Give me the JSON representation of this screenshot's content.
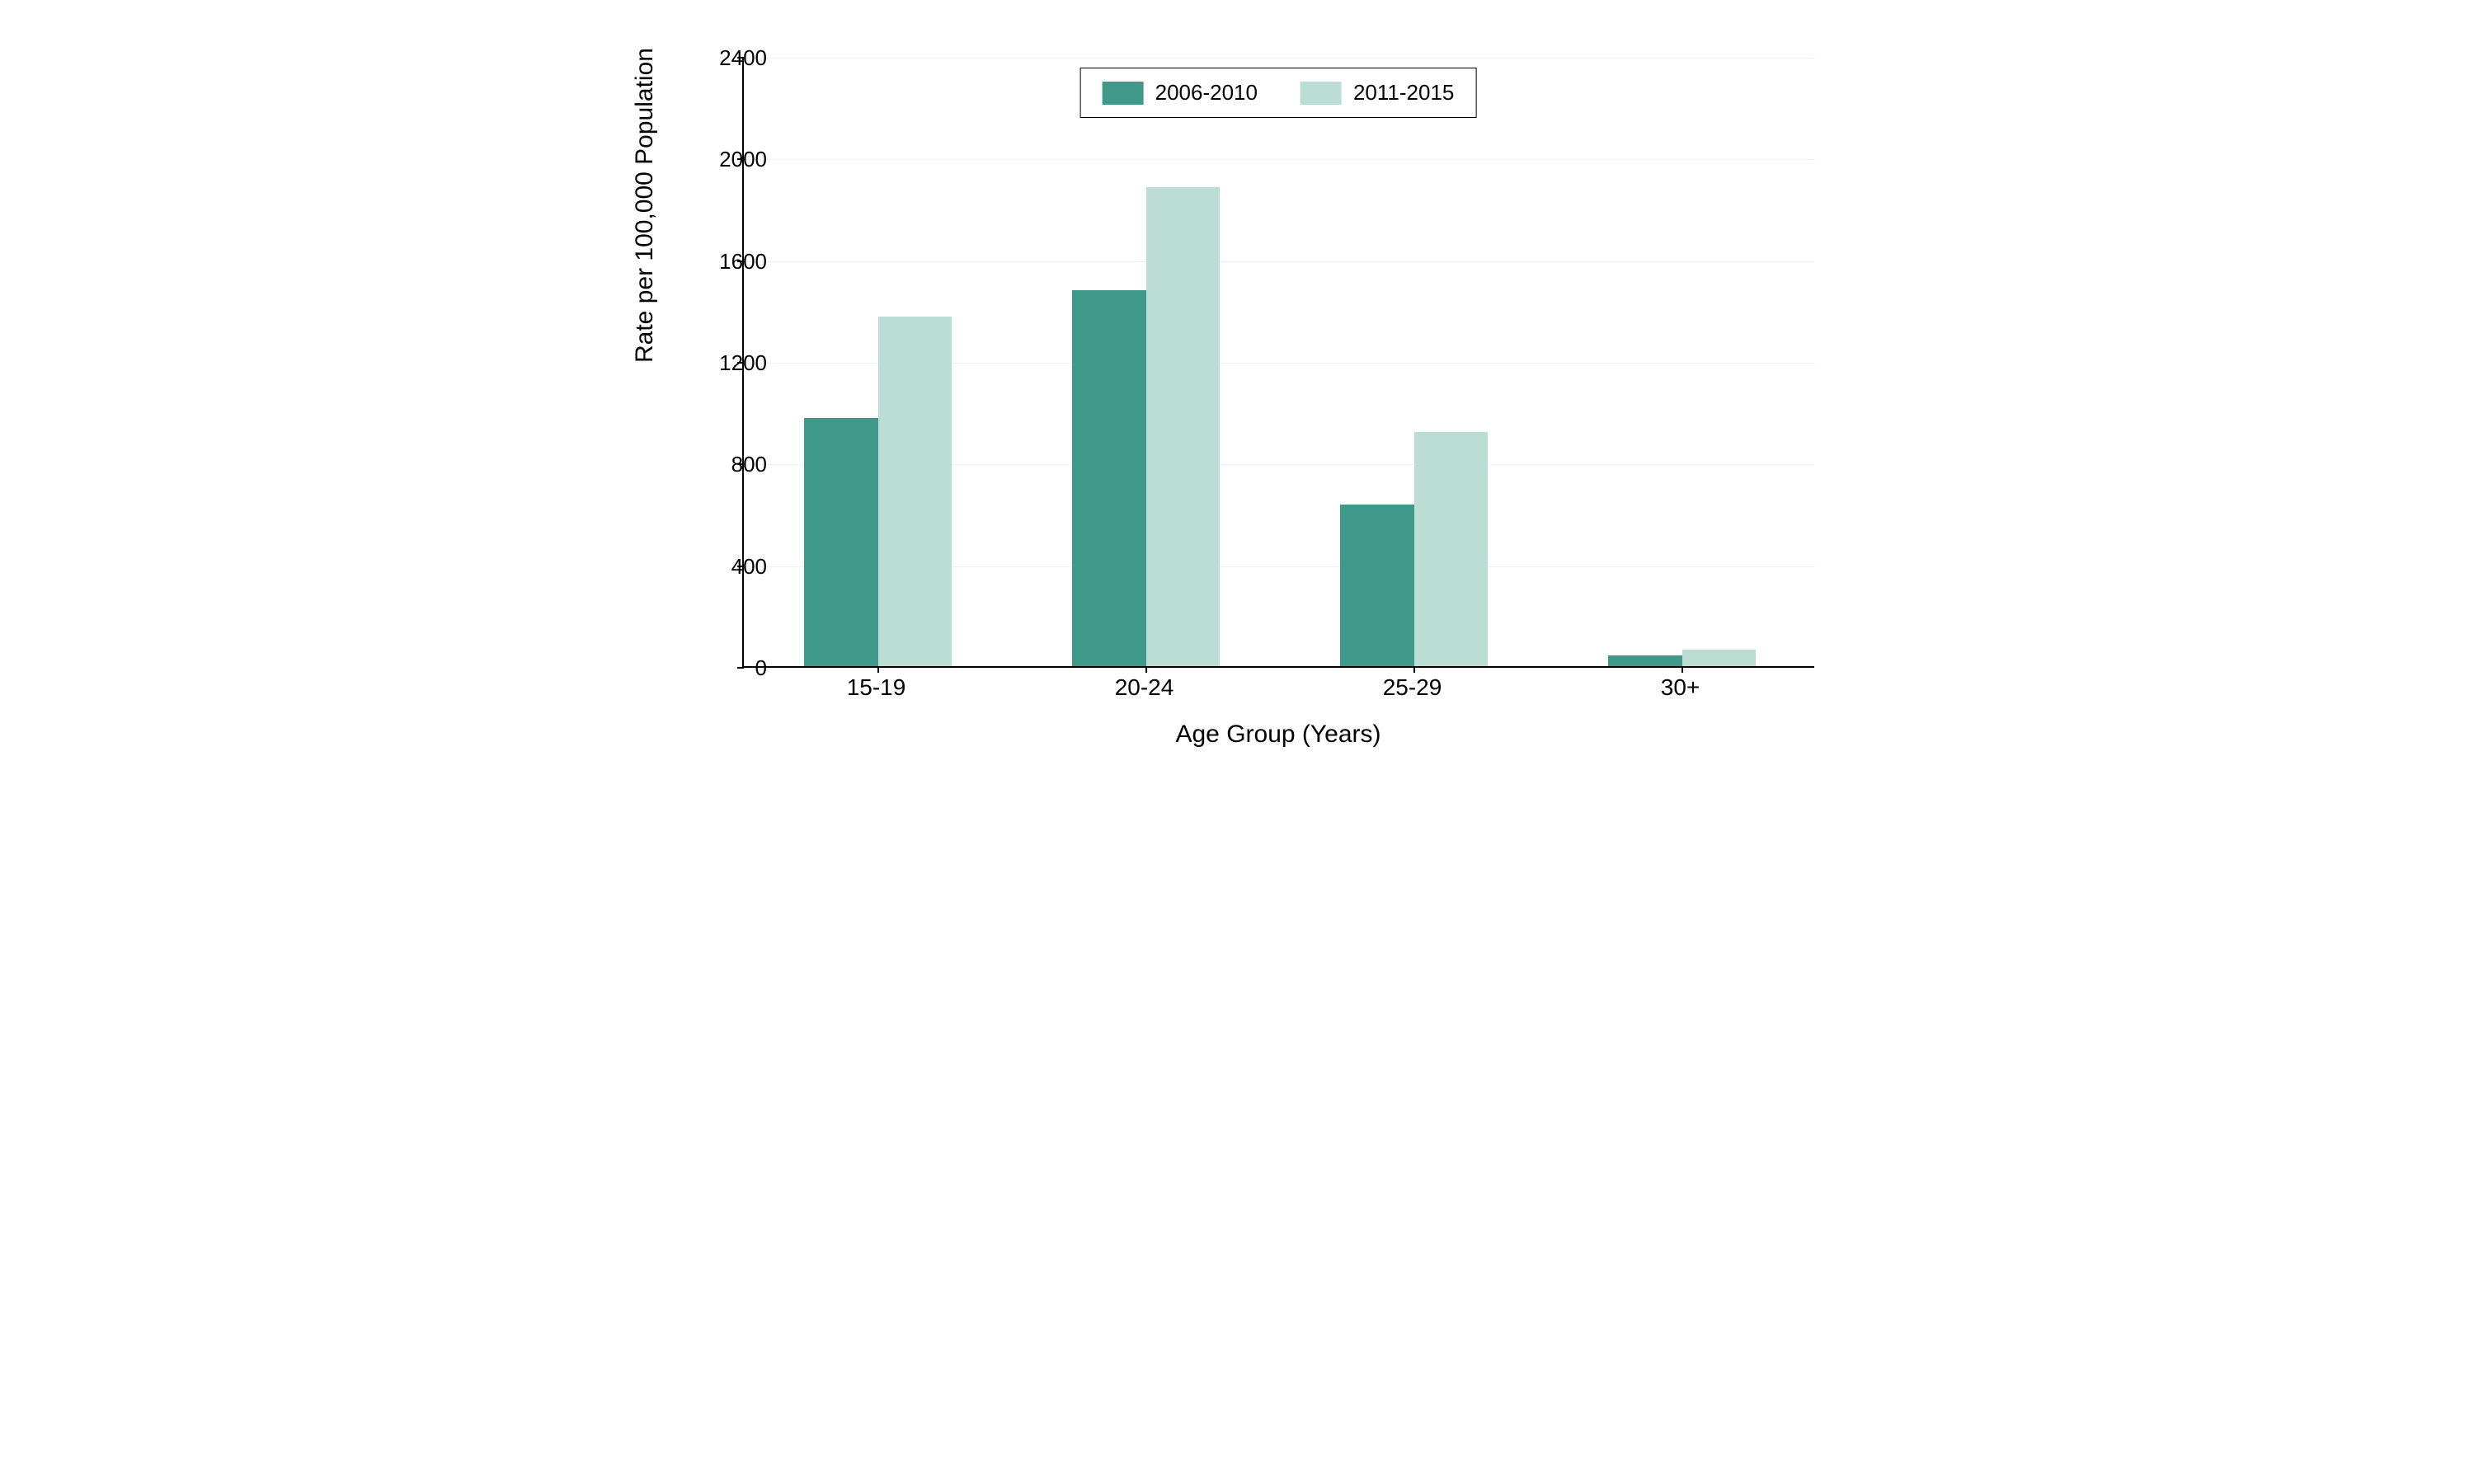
{
  "chart": {
    "type": "bar-grouped",
    "background_color": "#ffffff",
    "grid_color": "#eaf4f0",
    "axis_color": "#000000",
    "axis_line_width": 2,
    "ylabel": "Rate per 100,000 Population",
    "xlabel": "Age Group (Years)",
    "label_fontsize": 30,
    "tick_fontsize": 26,
    "ylim": [
      0,
      2400
    ],
    "ytick_step": 400,
    "yticks": [
      0,
      400,
      800,
      1200,
      1600,
      2000,
      2400
    ],
    "categories": [
      "15-19",
      "20-24",
      "25-29",
      "30+"
    ],
    "series": [
      {
        "name": "2006-2010",
        "color": "#3f998a",
        "values": [
          975,
          1480,
          635,
          42
        ]
      },
      {
        "name": "2011-2015",
        "color": "#bcddd4",
        "values": [
          1375,
          1885,
          920,
          65
        ]
      }
    ],
    "bar_group_width": 0.55,
    "bar_gap_within_group": 0,
    "legend": {
      "position": "top-center",
      "border_color": "#000000",
      "swatch_width": 50,
      "swatch_height": 28,
      "fontsize": 26
    }
  }
}
